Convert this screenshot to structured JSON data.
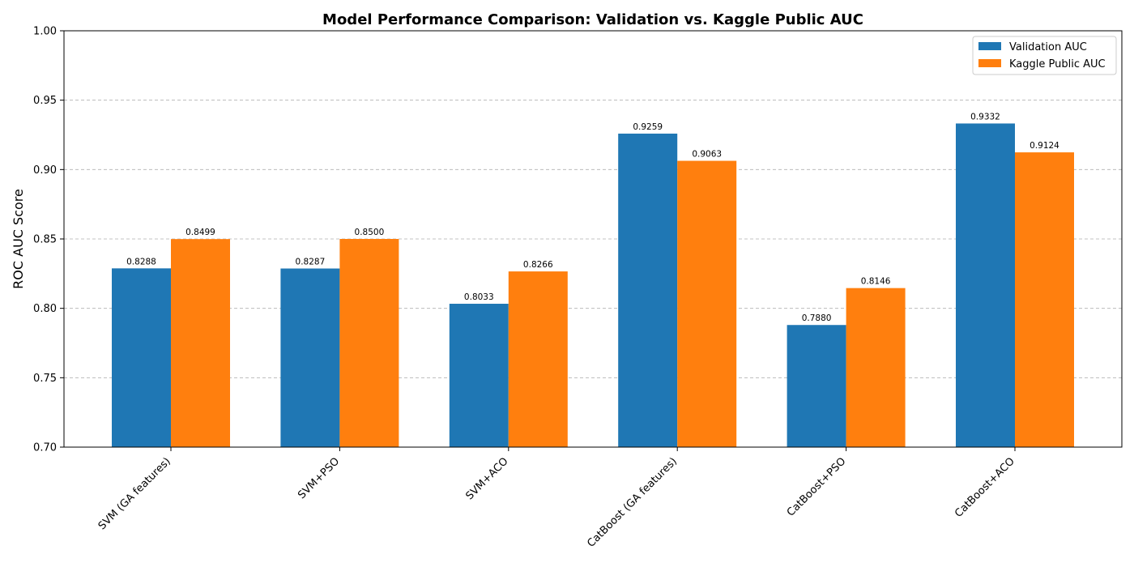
{
  "chart_data": {
    "type": "bar",
    "title": "Model Performance Comparison: Validation vs. Kaggle Public AUC",
    "xlabel": "",
    "ylabel": "ROC AUC Score",
    "ylim": [
      0.7,
      1.0
    ],
    "yticks": [
      "0.70",
      "0.75",
      "0.80",
      "0.85",
      "0.90",
      "0.95",
      "1.00"
    ],
    "grid": "y-dashed",
    "legend_position": "top-right",
    "categories": [
      "SVM (GA features)",
      "SVM+PSO",
      "SVM+ACO",
      "CatBoost (GA features)",
      "CatBoost+PSO",
      "CatBoost+ACO"
    ],
    "series": [
      {
        "name": "Validation AUC",
        "color": "#1f77b4",
        "values": [
          0.8288,
          0.8287,
          0.8033,
          0.9259,
          0.788,
          0.9332
        ],
        "labels": [
          "0.8288",
          "0.8287",
          "0.8033",
          "0.9259",
          "0.7880",
          "0.9332"
        ]
      },
      {
        "name": "Kaggle Public AUC",
        "color": "#ff7f0e",
        "values": [
          0.8499,
          0.85,
          0.8266,
          0.9063,
          0.8146,
          0.9124
        ],
        "labels": [
          "0.8499",
          "0.8500",
          "0.8266",
          "0.9063",
          "0.8146",
          "0.9124"
        ]
      }
    ]
  }
}
